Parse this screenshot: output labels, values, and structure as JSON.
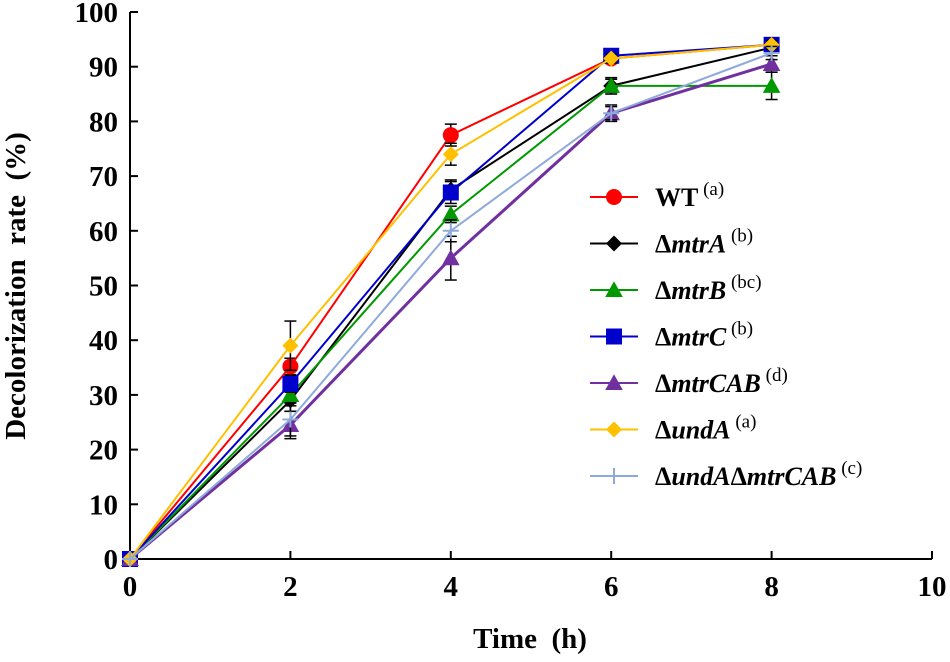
{
  "chart_data": {
    "type": "line",
    "title": "",
    "xlabel": "Time  (h)",
    "ylabel": "Decolorization  rate  (%)",
    "xlim": [
      0,
      10
    ],
    "ylim": [
      0,
      100
    ],
    "x_ticks": [
      0,
      2,
      4,
      6,
      8,
      10
    ],
    "y_ticks": [
      0,
      10,
      20,
      30,
      40,
      50,
      60,
      70,
      80,
      90,
      100
    ],
    "grid": false,
    "legend_position": "center-right",
    "x": [
      0,
      2,
      4,
      6,
      8
    ],
    "series": [
      {
        "name": "WT",
        "prefix": "",
        "italic": "",
        "plain": "WT",
        "sup": "(a)",
        "color": "#ff0000",
        "marker": "circle",
        "values": [
          0,
          35.2,
          77.5,
          91.5,
          94.0
        ],
        "errors": [
          0,
          1.5,
          2.0,
          0.8,
          0.8
        ]
      },
      {
        "name": "ΔmtrA",
        "prefix": "Δ",
        "italic": "mtrA",
        "plain": "",
        "sup": "(b)",
        "color": "#000000",
        "marker": "diamond",
        "values": [
          0,
          29.0,
          67.5,
          86.5,
          93.5
        ],
        "errors": [
          0,
          2.0,
          1.8,
          1.2,
          1.0
        ]
      },
      {
        "name": "ΔmtrB",
        "prefix": "Δ",
        "italic": "mtrB",
        "plain": "",
        "sup": "(bc)",
        "color": "#009900",
        "marker": "triangle",
        "values": [
          0,
          30.0,
          63.0,
          86.5,
          86.5
        ],
        "errors": [
          0,
          2.0,
          1.5,
          1.5,
          2.5
        ]
      },
      {
        "name": "ΔmtrC",
        "prefix": "Δ",
        "italic": "mtrC",
        "plain": "",
        "sup": "(b)",
        "color": "#0000cc",
        "marker": "square",
        "values": [
          0,
          32.0,
          67.0,
          92.0,
          94.0
        ],
        "errors": [
          0,
          1.5,
          2.0,
          0.8,
          0.8
        ]
      },
      {
        "name": "ΔmtrCAB",
        "prefix": "Δ",
        "italic": "mtrCAB",
        "plain": "",
        "sup": "(d)",
        "color": "#7030a0",
        "marker": "triangle",
        "values": [
          0,
          24.5,
          55.0,
          81.5,
          90.5
        ],
        "errors": [
          0,
          2.5,
          4.0,
          1.5,
          1.5
        ]
      },
      {
        "name": "ΔundA",
        "prefix": "Δ",
        "italic": "undA",
        "plain": "",
        "sup": "(a)",
        "color": "#ffc000",
        "marker": "diamond",
        "values": [
          0,
          39.0,
          74.0,
          91.5,
          94.0
        ],
        "errors": [
          0,
          4.5,
          2.0,
          0.8,
          0.8
        ]
      },
      {
        "name": "ΔundAΔmtrCAB",
        "prefix": "Δ",
        "italic": "undA",
        "mid": "Δ",
        "italic2": "mtrCAB",
        "plain": "",
        "sup": "(c)",
        "color": "#8eaadb",
        "marker": "plus",
        "values": [
          0,
          25.5,
          60.0,
          81.5,
          92.5
        ],
        "errors": [
          0,
          3.0,
          2.0,
          1.2,
          1.2
        ]
      }
    ]
  }
}
